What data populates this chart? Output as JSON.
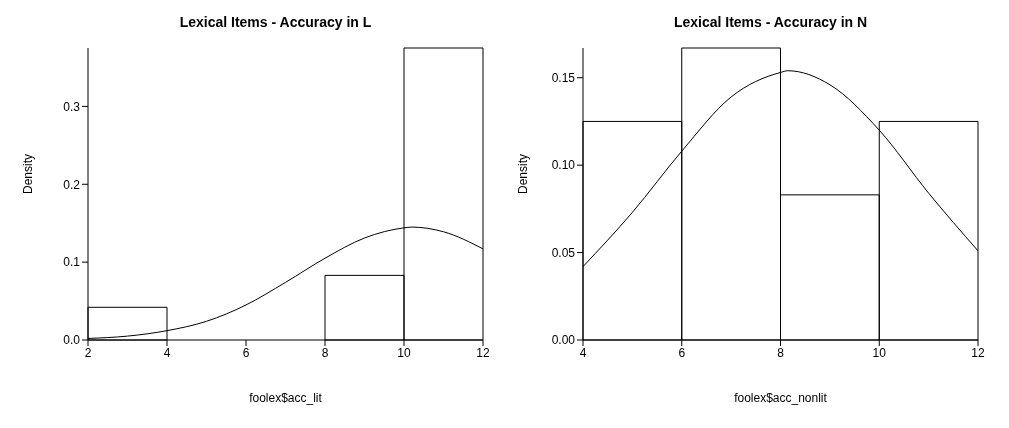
{
  "chart_data": [
    {
      "type": "histogram",
      "title": "Lexical Items - Accuracy in L",
      "xlabel": "foolex$acc_lit",
      "ylabel": "Density",
      "bins": [
        2,
        4,
        6,
        8,
        10,
        12
      ],
      "values": [
        0.042,
        0,
        0,
        0.083,
        0.375
      ],
      "color": "#000000",
      "xlim": [
        2,
        12
      ],
      "xticks": [
        2,
        4,
        6,
        8,
        10,
        12
      ],
      "ylim": [
        0,
        0.375
      ],
      "yticks": [
        {
          "value": 0,
          "label": "0.0"
        },
        {
          "value": 0.1,
          "label": "0.1"
        },
        {
          "value": 0.2,
          "label": "0.2"
        },
        {
          "value": 0.3,
          "label": "0.3"
        }
      ],
      "series": [
        {
          "type": "line",
          "color": "#000000",
          "x": [
            2,
            3,
            4,
            5,
            6,
            7,
            8,
            9,
            10,
            10.2,
            11,
            12
          ],
          "values": [
            0.002,
            0.005,
            0.012,
            0.024,
            0.045,
            0.074,
            0.105,
            0.131,
            0.144,
            0.145,
            0.139,
            0.117
          ]
        }
      ]
    },
    {
      "type": "histogram",
      "title": "Lexical Items - Accuracy in N",
      "xlabel": "foolex$acc_nonlit",
      "ylabel": "Density",
      "bins": [
        4,
        6,
        8,
        10,
        12
      ],
      "values": [
        0.125,
        0.167,
        0.083,
        0.125
      ],
      "color": "#000000",
      "xlim": [
        4,
        12
      ],
      "xticks": [
        4,
        6,
        8,
        10,
        12
      ],
      "ylim": [
        0,
        0.167
      ],
      "yticks": [
        {
          "value": 0,
          "label": "0.00"
        },
        {
          "value": 0.05,
          "label": "0.05"
        },
        {
          "value": 0.1,
          "label": "0.10"
        },
        {
          "value": 0.15,
          "label": "0.15"
        }
      ],
      "series": [
        {
          "type": "line",
          "color": "#000000",
          "x": [
            4,
            5,
            6,
            7,
            8,
            8.15,
            9,
            10,
            11,
            12
          ],
          "values": [
            0.042,
            0.073,
            0.108,
            0.139,
            0.153,
            0.154,
            0.146,
            0.12,
            0.084,
            0.051
          ]
        }
      ]
    }
  ]
}
